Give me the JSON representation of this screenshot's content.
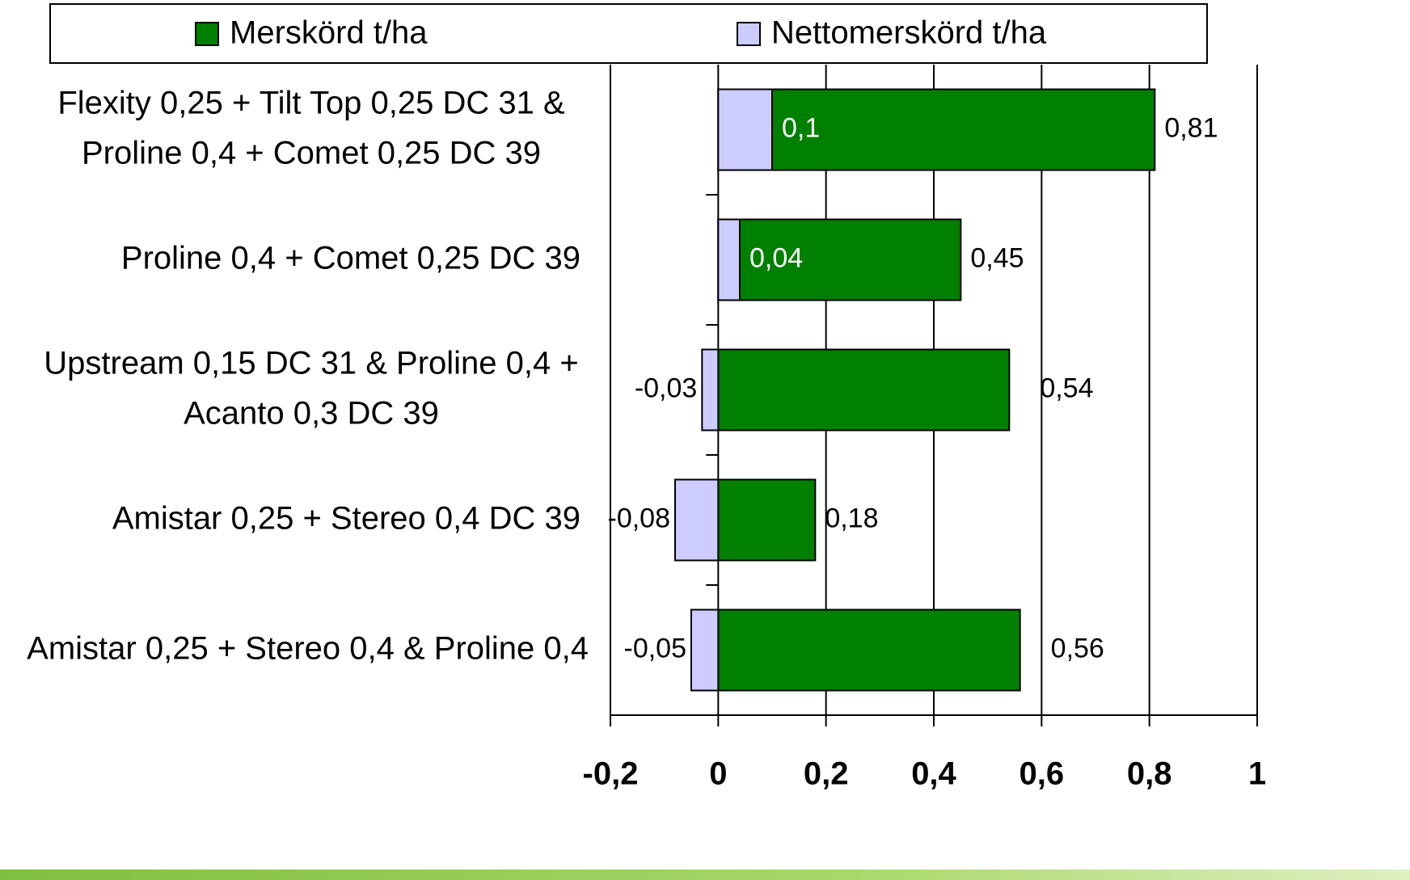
{
  "chart_data": {
    "type": "bar",
    "orientation": "horizontal",
    "categories": [
      "Flexity 0,25 + Tilt Top 0,25 DC 31 &\nProline 0,4 + Comet 0,25 DC 39",
      "Proline 0,4 + Comet 0,25 DC 39",
      "Upstream 0,15 DC 31 & Proline 0,4 +\nAcanto 0,3 DC 39",
      "Amistar 0,25 + Stereo 0,4 DC 39",
      "Amistar 0,25 + Stereo  0,4 & Proline 0,4"
    ],
    "series": [
      {
        "name": "Merskörd t/ha",
        "color": "#008000",
        "values": [
          0.81,
          0.45,
          0.54,
          0.18,
          0.56
        ],
        "value_labels": [
          "0,81",
          "0,45",
          "0,54",
          "0,18",
          "0,56"
        ]
      },
      {
        "name": "Nettomerskörd t/ha",
        "color": "#ccccff",
        "values": [
          0.1,
          0.04,
          -0.03,
          -0.08,
          -0.05
        ],
        "value_labels": [
          "0,1",
          "0,04",
          "-0,03",
          "-0,08",
          "-0,05"
        ]
      }
    ],
    "xlim": [
      -0.2,
      1
    ],
    "xticks": [
      {
        "value": -0.2,
        "label": "-0,2"
      },
      0,
      {
        "value": 0.2,
        "label": "0,2"
      },
      {
        "value": 0.4,
        "label": "0,4"
      },
      {
        "value": 0.6,
        "label": "0,6"
      },
      {
        "value": 0.8,
        "label": "0,8"
      },
      1
    ],
    "grid": true,
    "legend": "top"
  }
}
